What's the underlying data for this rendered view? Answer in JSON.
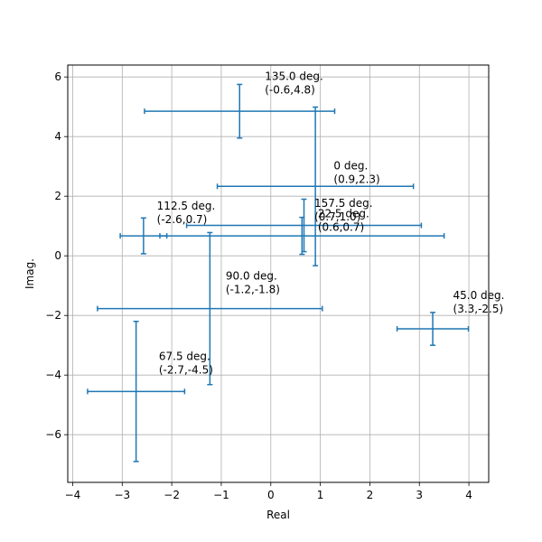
{
  "chart_data": {
    "type": "scatter",
    "title": "",
    "xlabel": "Real",
    "ylabel": "Imag.",
    "xlim": [
      -4.1,
      4.4
    ],
    "ylim": [
      -7.6,
      6.4
    ],
    "xticks": [
      -4,
      -3,
      -2,
      -1,
      0,
      1,
      2,
      3,
      4
    ],
    "yticks": [
      -6,
      -4,
      -2,
      0,
      2,
      4,
      6
    ],
    "xtick_labels": [
      "−4",
      "−3",
      "−2",
      "−1",
      "0",
      "1",
      "2",
      "3",
      "4"
    ],
    "ytick_labels": [
      "−6",
      "−4",
      "−2",
      "0",
      "2",
      "4",
      "6"
    ],
    "grid": true,
    "color": "#1f77b4",
    "points": [
      {
        "x": 0.9,
        "y": 2.33,
        "xerr": 1.98,
        "yerr": 2.66,
        "label": "0 deg.\n(0.9,2.3)",
        "label_x": 1.27,
        "label_y": 2.9
      },
      {
        "x": 0.63,
        "y": 0.67,
        "xerr": 2.87,
        "yerr": 0.62,
        "label": "22.5 deg.\n(0.6,0.7)",
        "label_x": 0.95,
        "label_y": 1.3
      },
      {
        "x": 3.27,
        "y": -2.45,
        "xerr": 0.72,
        "yerr": 0.55,
        "label": "45.0 deg.\n(3.3,-2.5)",
        "label_x": 3.68,
        "label_y": -1.45
      },
      {
        "x": -2.72,
        "y": -4.55,
        "xerr": 0.98,
        "yerr": 2.35,
        "label": "67.5 deg.\n(-2.7,-4.5)",
        "label_x": -2.26,
        "label_y": -3.5
      },
      {
        "x": -1.23,
        "y": -1.77,
        "xerr": 2.27,
        "yerr": 2.55,
        "label": "90.0 deg.\n(-1.2,-1.8)",
        "label_x": -0.91,
        "label_y": -0.8
      },
      {
        "x": -2.57,
        "y": 0.67,
        "xerr": 0.47,
        "yerr": 0.6,
        "label": "112.5 deg.\n(-2.6,0.7)",
        "label_x": -2.3,
        "label_y": 1.55
      },
      {
        "x": -0.63,
        "y": 4.85,
        "xerr": 1.92,
        "yerr": 0.9,
        "label": "135.0 deg.\n(-0.6,4.8)",
        "label_x": -0.12,
        "label_y": 5.9
      },
      {
        "x": 0.67,
        "y": 1.02,
        "xerr": 2.37,
        "yerr": 0.88,
        "label": "157.5 deg.\n(0.7,1.0)",
        "label_x": 0.88,
        "label_y": 1.65
      }
    ]
  }
}
